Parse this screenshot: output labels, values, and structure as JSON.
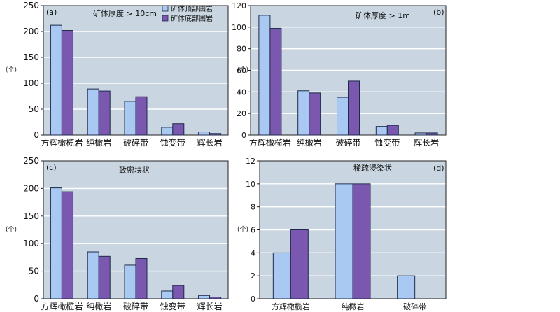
{
  "legend": {
    "top": "矿体顶部围岩",
    "bottom": "矿体底部围岩",
    "top_color": "#a9c8f2",
    "bottom_color": "#7b58b0"
  },
  "colors": {
    "plot_bg": "#c9d6e1",
    "grid": "#ffffff",
    "border": "#222222"
  },
  "chart_data": [
    {
      "id": "a",
      "type": "bar",
      "panel_tag": "(a)",
      "title": "矿体厚度 > 10cm",
      "ylabel": "(个)",
      "ylim": [
        0,
        250
      ],
      "yticks": [
        0,
        50,
        100,
        150,
        200,
        250
      ],
      "categories": [
        "方辉橄榄岩",
        "纯橄岩",
        "破碎带",
        "蚀变带",
        "辉长岩"
      ],
      "series": [
        {
          "name": "矿体顶部围岩",
          "values": [
            212,
            89,
            65,
            15,
            6
          ]
        },
        {
          "name": "矿体底部围岩",
          "values": [
            202,
            85,
            74,
            22,
            3
          ]
        }
      ],
      "legend": "top-right",
      "grid": true
    },
    {
      "id": "b",
      "type": "bar",
      "panel_tag": "(b)",
      "title": "矿体厚度 > 1m",
      "ylabel": "(个)",
      "ylim": [
        0,
        120
      ],
      "yticks": [
        0,
        20,
        40,
        60,
        80,
        100,
        120
      ],
      "categories": [
        "方辉橄榄岩",
        "纯橄岩",
        "破碎带",
        "蚀变带",
        "辉长岩"
      ],
      "series": [
        {
          "name": "矿体顶部围岩",
          "values": [
            111,
            41,
            35,
            8,
            2
          ]
        },
        {
          "name": "矿体底部围岩",
          "values": [
            99,
            39,
            50,
            9,
            2
          ]
        }
      ],
      "grid": true
    },
    {
      "id": "c",
      "type": "bar",
      "panel_tag": "(c)",
      "title": "致密块状",
      "ylabel": "(个)",
      "ylim": [
        0,
        250
      ],
      "yticks": [
        0,
        50,
        100,
        150,
        200,
        250
      ],
      "categories": [
        "方辉橄榄岩",
        "纯橄岩",
        "破碎带",
        "蚀变带",
        "辉长岩"
      ],
      "series": [
        {
          "name": "矿体顶部围岩",
          "values": [
            201,
            85,
            61,
            14,
            6
          ]
        },
        {
          "name": "矿体底部围岩",
          "values": [
            194,
            77,
            73,
            24,
            3
          ]
        }
      ],
      "grid": true
    },
    {
      "id": "d",
      "type": "bar",
      "panel_tag": "(d)",
      "title": "稀疏浸染状",
      "ylabel": "(个)",
      "ylim": [
        0,
        12
      ],
      "yticks": [
        0,
        2,
        4,
        6,
        8,
        10,
        12
      ],
      "categories": [
        "方辉橄榄岩",
        "纯橄岩",
        "破碎带"
      ],
      "series": [
        {
          "name": "矿体顶部围岩",
          "values": [
            4,
            10,
            2
          ]
        },
        {
          "name": "矿体底部围岩",
          "values": [
            6,
            10,
            0
          ]
        }
      ],
      "grid": true
    }
  ]
}
